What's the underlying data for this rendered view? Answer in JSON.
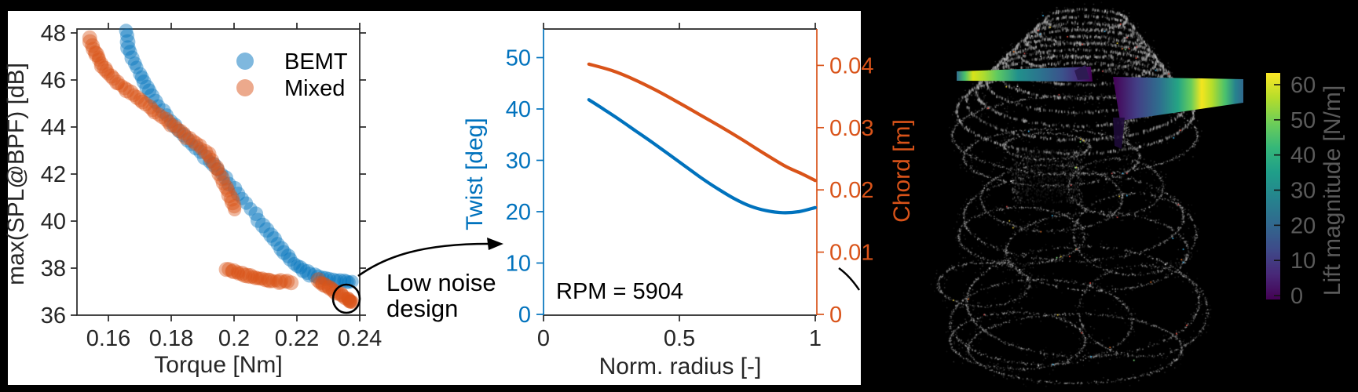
{
  "figure": {
    "background": "#000000",
    "panel_background": "#ffffff",
    "axis_color": "#262626",
    "blue": "#0072BD",
    "orange": "#D95319",
    "gray_label": "#5a5a5a"
  },
  "chart_data": [
    {
      "id": "noise-torque-pareto",
      "type": "scatter",
      "xlabel": "Torque [Nm]",
      "ylabel": "max(SPL@BPF) [dB]",
      "xlim": [
        0.15,
        0.24
      ],
      "ylim": [
        36,
        48.2
      ],
      "xtick_labels": [
        "0.16",
        "0.18",
        "0.2",
        "0.22",
        "0.24"
      ],
      "xtick_values": [
        0.16,
        0.18,
        0.2,
        0.22,
        0.24
      ],
      "ytick_labels": [
        "36",
        "38",
        "40",
        "42",
        "44",
        "46",
        "48"
      ],
      "ytick_values": [
        36,
        38,
        40,
        42,
        44,
        46,
        48
      ],
      "grid": false,
      "legend_position": "northeast",
      "legend": [
        "BEMT",
        "Mixed"
      ],
      "series": [
        {
          "name": "BEMT",
          "color": "#0072BD",
          "marker_opacity": 0.42,
          "paths": [
            [
              [
                0.1655,
                48.1
              ],
              [
                0.1665,
                47.4
              ],
              [
                0.1685,
                46.7
              ],
              [
                0.1705,
                46.1
              ],
              [
                0.173,
                45.5
              ],
              [
                0.176,
                44.9
              ],
              [
                0.18,
                44.25
              ],
              [
                0.184,
                43.65
              ],
              [
                0.188,
                43.1
              ],
              [
                0.192,
                42.55
              ],
              [
                0.196,
                42.0
              ],
              [
                0.2,
                41.4
              ],
              [
                0.204,
                40.75
              ],
              [
                0.208,
                40.05
              ],
              [
                0.2115,
                39.4
              ],
              [
                0.215,
                38.8
              ],
              [
                0.218,
                38.35
              ],
              [
                0.221,
                38.0
              ],
              [
                0.2245,
                37.75
              ],
              [
                0.228,
                37.6
              ],
              [
                0.2315,
                37.5
              ],
              [
                0.235,
                37.45
              ],
              [
                0.2375,
                37.4
              ]
            ]
          ]
        },
        {
          "name": "Mixed",
          "color": "#D95319",
          "marker_opacity": 0.42,
          "paths": [
            [
              [
                0.154,
                47.8
              ],
              [
                0.1552,
                47.3
              ],
              [
                0.1565,
                46.95
              ],
              [
                0.158,
                46.6
              ],
              [
                0.16,
                46.25
              ],
              [
                0.1625,
                45.95
              ],
              [
                0.165,
                45.65
              ],
              [
                0.168,
                45.35
              ],
              [
                0.171,
                45.05
              ],
              [
                0.174,
                44.75
              ],
              [
                0.177,
                44.45
              ],
              [
                0.18,
                44.1
              ],
              [
                0.183,
                43.8
              ],
              [
                0.186,
                43.5
              ],
              [
                0.189,
                43.2
              ],
              [
                0.1915,
                42.85
              ],
              [
                0.1935,
                42.45
              ],
              [
                0.1955,
                42.0
              ],
              [
                0.1975,
                41.45
              ],
              [
                0.199,
                40.95
              ],
              [
                0.2005,
                40.5
              ]
            ],
            [
              [
                0.1975,
                37.95
              ],
              [
                0.2,
                37.85
              ],
              [
                0.2025,
                37.75
              ],
              [
                0.205,
                37.65
              ],
              [
                0.2075,
                37.55
              ],
              [
                0.21,
                37.5
              ],
              [
                0.2125,
                37.45
              ],
              [
                0.215,
                37.43
              ],
              [
                0.218,
                37.4
              ]
            ],
            [
              [
                0.2265,
                37.45
              ],
              [
                0.2285,
                37.3
              ],
              [
                0.2305,
                37.15
              ],
              [
                0.2325,
                37.0
              ],
              [
                0.2345,
                36.85
              ],
              [
                0.236,
                36.7
              ],
              [
                0.237,
                36.6
              ],
              [
                0.2375,
                36.55
              ]
            ]
          ]
        }
      ],
      "highlight": {
        "x": 0.2358,
        "y": 36.7,
        "label_line1": "Low noise",
        "label_line2": "design"
      }
    },
    {
      "id": "blade-design",
      "type": "line",
      "xlabel": "Norm. radius [-]",
      "ylabel_left": "Twist [deg]",
      "ylabel_right": "Chord [m]",
      "xlim": [
        0,
        1
      ],
      "ylim_left": [
        0,
        55
      ],
      "ylim_right": [
        0,
        0.0455
      ],
      "xtick_labels": [
        "0",
        "0.5",
        "1"
      ],
      "xtick_values": [
        0,
        0.5,
        1
      ],
      "ytick_left_labels": [
        "0",
        "10",
        "20",
        "30",
        "40",
        "50"
      ],
      "ytick_left_values": [
        0,
        10,
        20,
        30,
        40,
        50
      ],
      "ytick_right_labels": [
        "0",
        "0.01",
        "0.02",
        "0.03",
        "0.04"
      ],
      "ytick_right_values": [
        0,
        0.01,
        0.02,
        0.03,
        0.04
      ],
      "annotation": "RPM = 5904",
      "series": [
        {
          "name": "Twist",
          "axis": "left",
          "color": "#0072BD",
          "points": [
            [
              0.167,
              41.8
            ],
            [
              0.22,
              40.0
            ],
            [
              0.28,
              37.9
            ],
            [
              0.34,
              35.7
            ],
            [
              0.4,
              33.5
            ],
            [
              0.46,
              31.2
            ],
            [
              0.52,
              28.9
            ],
            [
              0.58,
              26.6
            ],
            [
              0.64,
              24.5
            ],
            [
              0.7,
              22.6
            ],
            [
              0.76,
              21.1
            ],
            [
              0.82,
              20.2
            ],
            [
              0.88,
              19.8
            ],
            [
              0.94,
              20.0
            ],
            [
              1.0,
              20.8
            ]
          ]
        },
        {
          "name": "Chord",
          "axis": "right",
          "color": "#D95319",
          "points": [
            [
              0.167,
              0.0402
            ],
            [
              0.25,
              0.0392
            ],
            [
              0.33,
              0.0378
            ],
            [
              0.41,
              0.0361
            ],
            [
              0.49,
              0.0342
            ],
            [
              0.57,
              0.0322
            ],
            [
              0.65,
              0.0302
            ],
            [
              0.73,
              0.0281
            ],
            [
              0.81,
              0.0259
            ],
            [
              0.89,
              0.0238
            ],
            [
              0.95,
              0.0226
            ],
            [
              1.0,
              0.0215
            ]
          ]
        }
      ]
    },
    {
      "id": "wake-3d",
      "type": "3d-wake",
      "colorbar": {
        "label": "Lift magnitude [N/m]",
        "tick_labels": [
          "0",
          "10",
          "20",
          "30",
          "40",
          "50",
          "60"
        ],
        "tick_values": [
          0,
          10,
          20,
          30,
          40,
          50,
          60
        ],
        "colormap": "viridis"
      }
    }
  ]
}
